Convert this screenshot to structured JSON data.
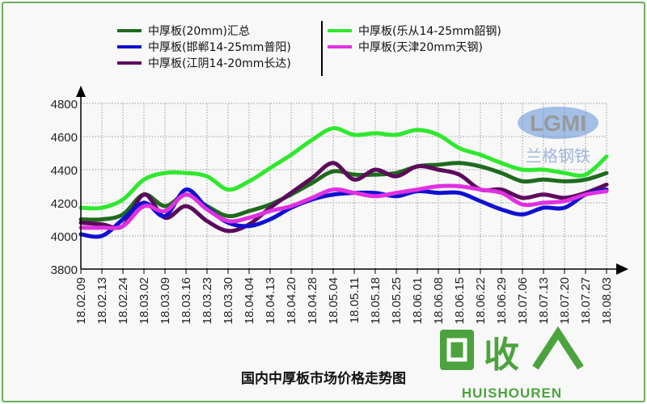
{
  "chart_data": {
    "type": "line",
    "title": "国内中厚板市场价格走势图",
    "xlabel": "",
    "ylabel": "",
    "ylim": [
      3800,
      4800
    ],
    "yticks": [
      3800,
      4000,
      4200,
      4400,
      4600,
      4800
    ],
    "grid": true,
    "legend_position": "top",
    "categories": [
      "18.02.09",
      "18.02.13",
      "18.02.24",
      "18.03.02",
      "18.03.09",
      "18.03.16",
      "18.03.23",
      "18.03.30",
      "18.04.04",
      "18.04.13",
      "18.04.20",
      "18.04.28",
      "18.05.04",
      "18.05.11",
      "18.05.18",
      "18.05.25",
      "18.06.01",
      "18.06.08",
      "18.06.15",
      "18.06.22",
      "18.06.29",
      "18.07.06",
      "18.07.13",
      "18.07.20",
      "18.07.27",
      "18.08.03"
    ],
    "series": [
      {
        "name": "中厚板(20mm)汇总",
        "color": "#1e6b1e",
        "values": [
          4100,
          4100,
          4130,
          4250,
          4180,
          4250,
          4180,
          4120,
          4150,
          4190,
          4250,
          4320,
          4390,
          4370,
          4370,
          4380,
          4420,
          4430,
          4440,
          4420,
          4380,
          4330,
          4340,
          4330,
          4340,
          4380
        ]
      },
      {
        "name": "中厚板(邯郸14-25mm普阳)",
        "color": "#1010d0",
        "values": [
          4010,
          4000,
          4100,
          4200,
          4120,
          4280,
          4170,
          4080,
          4060,
          4100,
          4170,
          4220,
          4250,
          4260,
          4260,
          4240,
          4270,
          4260,
          4260,
          4210,
          4160,
          4130,
          4170,
          4170,
          4250,
          4280
        ]
      },
      {
        "name": "中厚板(江阴14-20mm长达)",
        "color": "#5c0a5c",
        "values": [
          4080,
          4070,
          4060,
          4250,
          4110,
          4180,
          4090,
          4030,
          4070,
          4170,
          4260,
          4350,
          4440,
          4340,
          4400,
          4360,
          4420,
          4400,
          4370,
          4280,
          4280,
          4230,
          4250,
          4230,
          4260,
          4310
        ]
      },
      {
        "name": "中厚板(乐从14-25mm韶钢)",
        "color": "#2ee82e",
        "values": [
          4170,
          4170,
          4220,
          4340,
          4380,
          4380,
          4360,
          4280,
          4330,
          4410,
          4490,
          4580,
          4650,
          4610,
          4620,
          4610,
          4640,
          4610,
          4530,
          4490,
          4440,
          4400,
          4400,
          4380,
          4370,
          4480
        ]
      },
      {
        "name": "中厚板(天津20mm天钢)",
        "color": "#e030e0",
        "values": [
          4050,
          4050,
          4060,
          4180,
          4150,
          4250,
          4160,
          4090,
          4110,
          4150,
          4180,
          4230,
          4280,
          4260,
          4240,
          4260,
          4280,
          4300,
          4300,
          4280,
          4260,
          4190,
          4200,
          4210,
          4250,
          4270
        ]
      }
    ]
  },
  "watermarks": {
    "logo": "LGMI",
    "logo_cn": "兰格钢铁",
    "site_cn": "回收",
    "site": "HUISHOUREN"
  }
}
